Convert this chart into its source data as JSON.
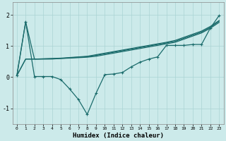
{
  "xlabel": "Humidex (Indice chaleur)",
  "bg_color": "#cceaea",
  "line_color": "#1a6b6b",
  "grid_color": "#aad4d4",
  "xlim": [
    -0.5,
    23.5
  ],
  "ylim": [
    -1.5,
    2.4
  ],
  "yticks": [
    -1,
    0,
    1,
    2
  ],
  "xticks": [
    0,
    1,
    2,
    3,
    4,
    5,
    6,
    7,
    8,
    9,
    10,
    11,
    12,
    13,
    14,
    15,
    16,
    17,
    18,
    19,
    20,
    21,
    22,
    23
  ],
  "series": [
    {
      "x": [
        0,
        1,
        2,
        3,
        4,
        5,
        6,
        7,
        8,
        9,
        10,
        11,
        12,
        13,
        14,
        15,
        16,
        17,
        18,
        19,
        20,
        21,
        22,
        23
      ],
      "y": [
        0.05,
        1.78,
        0.58,
        0.58,
        0.58,
        0.6,
        0.62,
        0.64,
        0.66,
        0.7,
        0.75,
        0.8,
        0.85,
        0.9,
        0.95,
        1.0,
        1.05,
        1.1,
        1.15,
        1.25,
        1.35,
        1.45,
        1.6,
        1.8
      ],
      "marker": false,
      "linewidth": 0.9
    },
    {
      "x": [
        0,
        1,
        2,
        3,
        4,
        5,
        6,
        7,
        8,
        9,
        10,
        11,
        12,
        13,
        14,
        15,
        16,
        17,
        18,
        19,
        20,
        21,
        22,
        23
      ],
      "y": [
        0.05,
        1.78,
        0.02,
        0.02,
        0.02,
        -0.08,
        -0.38,
        -0.72,
        -1.2,
        -0.52,
        0.08,
        0.1,
        0.15,
        0.33,
        0.48,
        0.58,
        0.65,
        1.02,
        1.02,
        1.02,
        1.05,
        1.05,
        1.58,
        1.98
      ],
      "marker": true,
      "linewidth": 0.9
    },
    {
      "x": [
        0,
        1,
        2,
        3,
        4,
        5,
        6,
        7,
        8,
        9,
        10,
        11,
        12,
        13,
        14,
        15,
        16,
        17,
        18,
        19,
        20,
        21,
        22,
        23
      ],
      "y": [
        0.05,
        0.58,
        0.58,
        0.59,
        0.6,
        0.61,
        0.63,
        0.65,
        0.67,
        0.72,
        0.77,
        0.82,
        0.87,
        0.92,
        0.97,
        1.02,
        1.07,
        1.12,
        1.18,
        1.28,
        1.38,
        1.48,
        1.63,
        1.82
      ],
      "marker": false,
      "linewidth": 0.9
    },
    {
      "x": [
        0,
        1,
        2,
        3,
        4,
        5,
        6,
        7,
        8,
        9,
        10,
        11,
        12,
        13,
        14,
        15,
        16,
        17,
        18,
        19,
        20,
        21,
        22,
        23
      ],
      "y": [
        0.05,
        0.58,
        0.58,
        0.585,
        0.59,
        0.6,
        0.61,
        0.625,
        0.64,
        0.67,
        0.72,
        0.77,
        0.82,
        0.87,
        0.92,
        0.97,
        1.02,
        1.07,
        1.12,
        1.22,
        1.32,
        1.42,
        1.57,
        1.76
      ],
      "marker": false,
      "linewidth": 0.9
    }
  ]
}
